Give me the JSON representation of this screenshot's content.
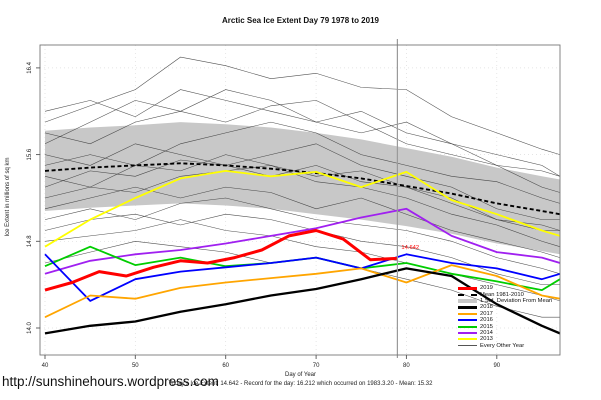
{
  "footer": {
    "url": "http://sunshinehours.wordpress.com"
  },
  "chart_data": {
    "type": "line",
    "title": "Arctic Sea Ice Extent Day 79 1978 to 2019",
    "xlabel": "Day of Year",
    "ylabel": "Ice Extent in millions of sq km",
    "caption": "Today's Ice Extent: 14.642  - Record for the day: 16.212 which occurred on 1983.3.20  - Mean: 15.32",
    "x_ticks": [
      40,
      50,
      60,
      70,
      80,
      90
    ],
    "x_tick_labels": [
      "40",
      "50",
      "60",
      "70",
      "80",
      "90"
    ],
    "y_ticks": [
      14.0,
      14.8,
      15.6,
      16.4
    ],
    "y_tick_labels": [
      "14.0",
      "14.8",
      "15.6",
      "16.4"
    ],
    "xlim": [
      39.5,
      97
    ],
    "ylim": [
      13.75,
      16.6
    ],
    "grid": true,
    "legend_position": "bottom-right",
    "marker_day": 79,
    "annotation": {
      "text": "14.642",
      "color": "#FF0000"
    },
    "band": {
      "label": "1 Std. Deviation From Mean",
      "fill": "#c8c8c8",
      "days": [
        40,
        45,
        50,
        55,
        60,
        65,
        70,
        75,
        80,
        85,
        90,
        95,
        97
      ],
      "upper": [
        15.82,
        15.85,
        15.87,
        15.9,
        15.88,
        15.85,
        15.8,
        15.74,
        15.66,
        15.58,
        15.48,
        15.4,
        15.37
      ],
      "lower": [
        15.08,
        15.11,
        15.13,
        15.15,
        15.13,
        15.1,
        15.05,
        15.0,
        14.94,
        14.87,
        14.78,
        14.71,
        14.68
      ]
    },
    "mean_line": {
      "label": "Mean 1981-2010",
      "color": "#000000",
      "days": [
        40,
        45,
        50,
        55,
        60,
        65,
        70,
        75,
        80,
        85,
        90,
        95,
        97
      ],
      "values": [
        15.45,
        15.48,
        15.5,
        15.52,
        15.5,
        15.47,
        15.43,
        15.38,
        15.31,
        15.24,
        15.15,
        15.08,
        15.05
      ]
    },
    "series": [
      {
        "name": "2019",
        "color": "#FF0000",
        "width": 3,
        "days": [
          40,
          43,
          46,
          49,
          52,
          55,
          58,
          61,
          64,
          67,
          70,
          73,
          76,
          79
        ],
        "values": [
          14.35,
          14.42,
          14.52,
          14.48,
          14.56,
          14.62,
          14.6,
          14.65,
          14.72,
          14.85,
          14.9,
          14.82,
          14.63,
          14.642
        ]
      },
      {
        "name": "2018",
        "color": "#000000",
        "width": 2.3,
        "days": [
          40,
          45,
          50,
          55,
          60,
          65,
          70,
          75,
          80,
          85,
          90,
          95,
          97
        ],
        "values": [
          13.95,
          14.02,
          14.06,
          14.15,
          14.22,
          14.3,
          14.36,
          14.45,
          14.55,
          14.48,
          14.22,
          14.02,
          13.95
        ]
      },
      {
        "name": "2017",
        "color": "#FFA500",
        "width": 1.8,
        "days": [
          40,
          45,
          50,
          55,
          60,
          65,
          70,
          75,
          80,
          85,
          90,
          95,
          97
        ],
        "values": [
          14.1,
          14.3,
          14.27,
          14.37,
          14.42,
          14.46,
          14.5,
          14.55,
          14.42,
          14.58,
          14.48,
          14.3,
          14.27
        ]
      },
      {
        "name": "2016",
        "color": "#0000FF",
        "width": 1.8,
        "days": [
          40,
          45,
          50,
          55,
          60,
          65,
          70,
          75,
          80,
          85,
          90,
          95,
          97
        ],
        "values": [
          14.68,
          14.25,
          14.45,
          14.52,
          14.56,
          14.6,
          14.65,
          14.55,
          14.68,
          14.6,
          14.55,
          14.45,
          14.5
        ]
      },
      {
        "name": "2015",
        "color": "#00CD00",
        "width": 1.8,
        "days": [
          40,
          45,
          50,
          55,
          60,
          65,
          70,
          75,
          80,
          85,
          90,
          95,
          97
        ],
        "values": [
          14.57,
          14.75,
          14.58,
          14.65,
          14.57,
          14.6,
          14.65,
          14.55,
          14.6,
          14.5,
          14.43,
          14.35,
          14.45
        ]
      },
      {
        "name": "2014",
        "color": "#A020F0",
        "width": 1.8,
        "days": [
          40,
          45,
          50,
          55,
          60,
          65,
          70,
          75,
          80,
          85,
          90,
          95,
          97
        ],
        "values": [
          14.5,
          14.62,
          14.68,
          14.72,
          14.78,
          14.85,
          14.92,
          15.02,
          15.1,
          14.85,
          14.7,
          14.65,
          14.6
        ]
      },
      {
        "name": "2013",
        "color": "#FFFF00",
        "width": 1.8,
        "days": [
          40,
          45,
          50,
          55,
          60,
          65,
          70,
          75,
          80,
          85,
          90,
          95,
          97
        ],
        "values": [
          14.75,
          15.0,
          15.2,
          15.38,
          15.45,
          15.4,
          15.44,
          15.3,
          15.44,
          15.18,
          15.05,
          14.9,
          14.85
        ]
      }
    ],
    "background_series": {
      "label": "Every Other Year",
      "color": "#333333",
      "days": [
        40,
        45,
        50,
        55,
        60,
        65,
        70,
        75,
        80,
        85,
        90,
        95,
        97
      ],
      "lines": [
        [
          15.9,
          16.05,
          16.2,
          16.5,
          16.42,
          16.3,
          16.35,
          16.22,
          16.2,
          15.95,
          15.8,
          15.65,
          15.6
        ],
        [
          16.0,
          16.1,
          15.95,
          16.2,
          16.1,
          16.0,
          15.9,
          15.8,
          15.9,
          15.7,
          15.6,
          15.5,
          15.4
        ],
        [
          15.8,
          15.7,
          15.9,
          16.0,
          15.9,
          16.05,
          16.1,
          15.9,
          15.7,
          15.6,
          15.5,
          15.3,
          15.25
        ],
        [
          15.7,
          15.9,
          16.1,
          16.0,
          16.2,
          16.1,
          15.9,
          16.0,
          15.8,
          15.7,
          15.5,
          15.45,
          15.4
        ],
        [
          15.5,
          15.6,
          15.5,
          15.7,
          15.8,
          15.9,
          15.8,
          15.6,
          15.5,
          15.4,
          15.35,
          15.2,
          15.15
        ],
        [
          15.6,
          15.5,
          15.7,
          15.6,
          15.5,
          15.6,
          15.7,
          15.5,
          15.4,
          15.3,
          15.1,
          15.0,
          15.0
        ],
        [
          15.3,
          15.45,
          15.4,
          15.55,
          15.5,
          15.4,
          15.5,
          15.35,
          15.3,
          15.2,
          15.0,
          14.9,
          14.9
        ],
        [
          15.4,
          15.3,
          15.5,
          15.45,
          15.6,
          15.5,
          15.4,
          15.45,
          15.3,
          15.15,
          15.0,
          14.95,
          14.9
        ],
        [
          15.2,
          15.3,
          15.25,
          15.4,
          15.45,
          15.5,
          15.35,
          15.3,
          15.2,
          15.05,
          14.95,
          14.8,
          14.75
        ],
        [
          15.1,
          15.2,
          15.3,
          15.2,
          15.3,
          15.25,
          15.1,
          15.2,
          15.05,
          14.9,
          14.8,
          14.7,
          14.65
        ],
        [
          15.0,
          15.1,
          15.0,
          15.15,
          15.2,
          15.1,
          15.0,
          14.95,
          14.9,
          14.8,
          14.65,
          14.55,
          14.5
        ],
        [
          14.9,
          15.0,
          15.05,
          14.95,
          15.05,
          15.0,
          14.9,
          14.8,
          14.75,
          14.65,
          14.5,
          14.4,
          14.4
        ],
        [
          14.8,
          14.85,
          14.9,
          15.0,
          14.9,
          14.85,
          14.75,
          14.7,
          14.6,
          14.5,
          14.4,
          14.3,
          14.25
        ],
        [
          14.6,
          14.7,
          14.8,
          14.75,
          14.7,
          14.6,
          14.65,
          14.55,
          14.45,
          14.35,
          14.2,
          14.1,
          14.1
        ]
      ]
    }
  },
  "legend": {
    "items": [
      {
        "label": "2019",
        "swatch": "line",
        "color": "#FF0000",
        "thickness": 3
      },
      {
        "label": "Mean 1981-2010",
        "swatch": "dashed",
        "color": "#000000",
        "thickness": 2
      },
      {
        "label": "1 Std. Deviation From Mean",
        "swatch": "band",
        "color": "#c8c8c8",
        "thickness": 5
      },
      {
        "label": "2018",
        "swatch": "line",
        "color": "#000000",
        "thickness": 2.3
      },
      {
        "label": "2017",
        "swatch": "line",
        "color": "#FFA500",
        "thickness": 2
      },
      {
        "label": "2016",
        "swatch": "line",
        "color": "#0000FF",
        "thickness": 2
      },
      {
        "label": "2015",
        "swatch": "line",
        "color": "#00CD00",
        "thickness": 2
      },
      {
        "label": "2014",
        "swatch": "line",
        "color": "#A020F0",
        "thickness": 2
      },
      {
        "label": "2013",
        "swatch": "line",
        "color": "#FFFF00",
        "thickness": 2
      },
      {
        "label": "Every Other Year",
        "swatch": "line",
        "color": "#555555",
        "thickness": 1
      }
    ]
  }
}
